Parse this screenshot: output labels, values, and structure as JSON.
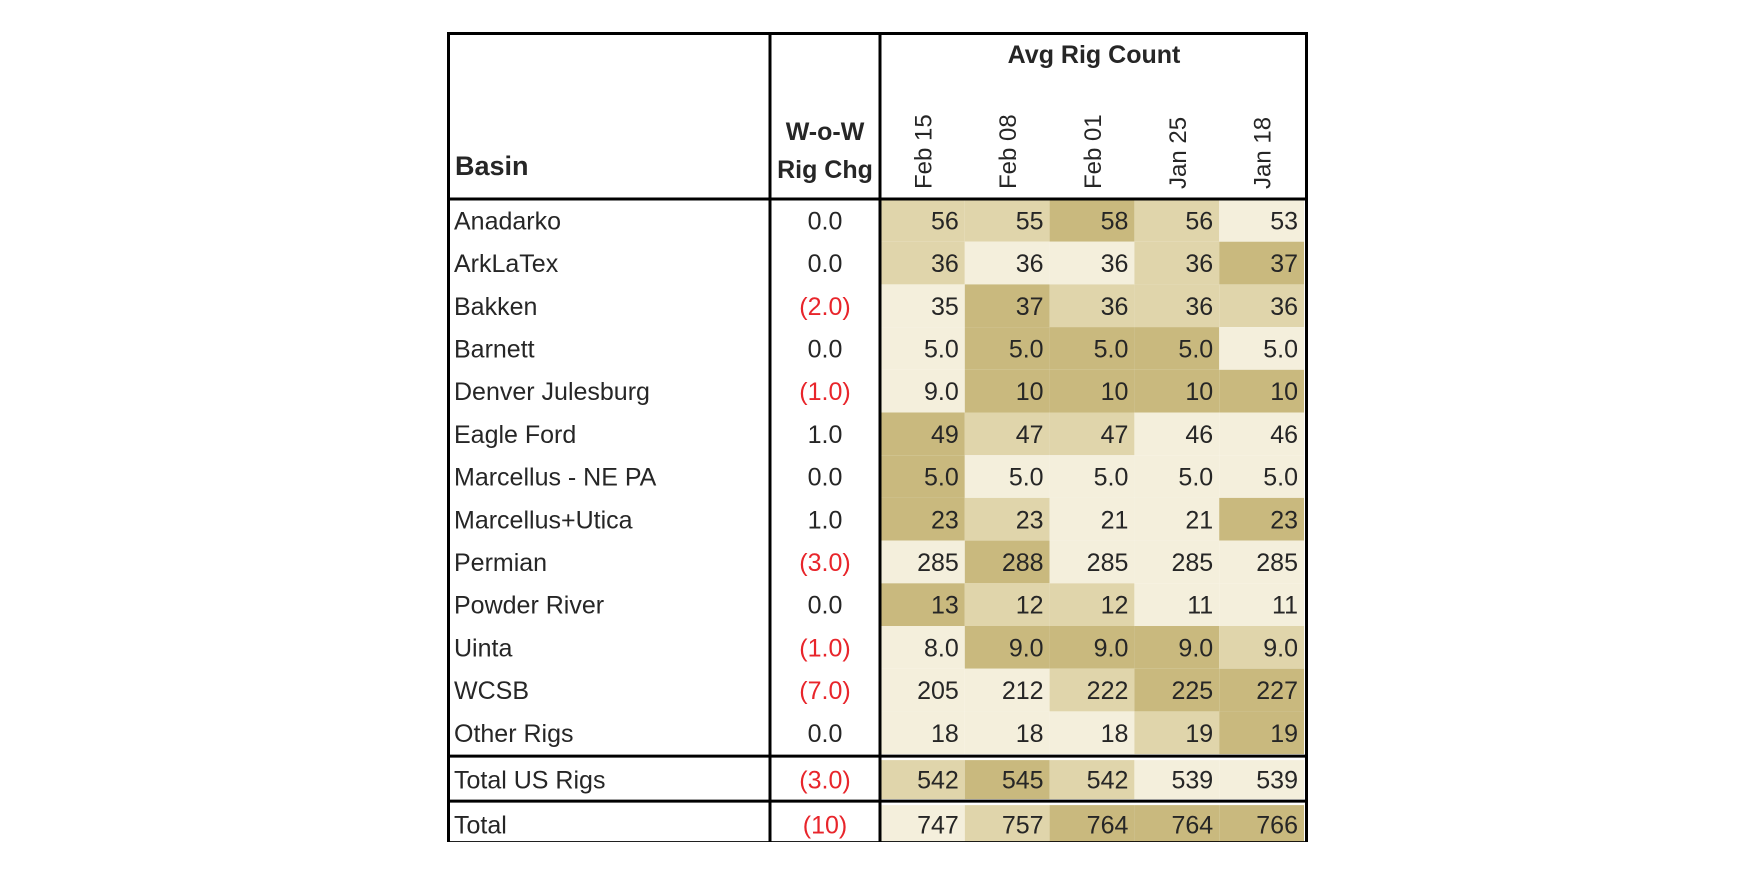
{
  "chart_data": {
    "type": "table",
    "header": {
      "basin_label": "Basin",
      "change_label_line1": "W-o-W",
      "change_label_line2": "Rig Chg",
      "group_label": "Avg Rig Count"
    },
    "columns": [
      "Feb 15",
      "Feb 08",
      "Feb 01",
      "Jan 25",
      "Jan 18"
    ],
    "rows": [
      {
        "basin": "Anadarko",
        "change": "0.0",
        "negative": false,
        "values": [
          "56",
          "55",
          "58",
          "56",
          "53"
        ],
        "shades": [
          2,
          2,
          3,
          2,
          1
        ]
      },
      {
        "basin": "ArkLaTex",
        "change": "0.0",
        "negative": false,
        "values": [
          "36",
          "36",
          "36",
          "36",
          "37"
        ],
        "shades": [
          2,
          1,
          1,
          2,
          3
        ]
      },
      {
        "basin": "Bakken",
        "change": "(2.0)",
        "negative": true,
        "values": [
          "35",
          "37",
          "36",
          "36",
          "36"
        ],
        "shades": [
          1,
          3,
          2,
          2,
          2
        ]
      },
      {
        "basin": "Barnett",
        "change": "0.0",
        "negative": false,
        "values": [
          "5.0",
          "5.0",
          "5.0",
          "5.0",
          "5.0"
        ],
        "shades": [
          1,
          3,
          3,
          3,
          1
        ]
      },
      {
        "basin": "Denver Julesburg",
        "change": "(1.0)",
        "negative": true,
        "values": [
          "9.0",
          "10",
          "10",
          "10",
          "10"
        ],
        "shades": [
          1,
          3,
          3,
          3,
          3
        ]
      },
      {
        "basin": "Eagle Ford",
        "change": "1.0",
        "negative": false,
        "values": [
          "49",
          "47",
          "47",
          "46",
          "46"
        ],
        "shades": [
          3,
          2,
          2,
          1,
          1
        ]
      },
      {
        "basin": "Marcellus - NE PA",
        "change": "0.0",
        "negative": false,
        "values": [
          "5.0",
          "5.0",
          "5.0",
          "5.0",
          "5.0"
        ],
        "shades": [
          3,
          1,
          1,
          1,
          1
        ]
      },
      {
        "basin": "Marcellus+Utica",
        "change": "1.0",
        "negative": false,
        "values": [
          "23",
          "23",
          "21",
          "21",
          "23"
        ],
        "shades": [
          3,
          2,
          1,
          1,
          3
        ]
      },
      {
        "basin": "Permian",
        "change": "(3.0)",
        "negative": true,
        "values": [
          "285",
          "288",
          "285",
          "285",
          "285"
        ],
        "shades": [
          1,
          3,
          1,
          1,
          1
        ]
      },
      {
        "basin": "Powder River",
        "change": "0.0",
        "negative": false,
        "values": [
          "13",
          "12",
          "12",
          "11",
          "11"
        ],
        "shades": [
          3,
          2,
          2,
          1,
          1
        ]
      },
      {
        "basin": "Uinta",
        "change": "(1.0)",
        "negative": true,
        "values": [
          "8.0",
          "9.0",
          "9.0",
          "9.0",
          "9.0"
        ],
        "shades": [
          1,
          3,
          3,
          3,
          2
        ]
      },
      {
        "basin": "WCSB",
        "change": "(7.0)",
        "negative": true,
        "values": [
          "205",
          "212",
          "222",
          "225",
          "227"
        ],
        "shades": [
          1,
          1,
          2,
          3,
          3
        ]
      },
      {
        "basin": "Other Rigs",
        "change": "0.0",
        "negative": false,
        "values": [
          "18",
          "18",
          "18",
          "19",
          "19"
        ],
        "shades": [
          1,
          1,
          1,
          2,
          3
        ]
      }
    ],
    "totals": [
      {
        "basin": "Total US Rigs",
        "change": "(3.0)",
        "negative": true,
        "values": [
          "542",
          "545",
          "542",
          "539",
          "539"
        ],
        "shades": [
          2,
          3,
          2,
          1,
          1
        ]
      },
      {
        "basin": "Total",
        "change": "(10)",
        "negative": true,
        "values": [
          "747",
          "757",
          "764",
          "764",
          "766"
        ],
        "shades": [
          1,
          2,
          3,
          3,
          3
        ]
      }
    ]
  },
  "colors": {
    "shade_light": "#f4efdc",
    "shade_mid": "#e0d5ab",
    "shade_dark": "#c9b97e",
    "negative": "#e8252b",
    "text": "#262626",
    "border": "#000000"
  }
}
